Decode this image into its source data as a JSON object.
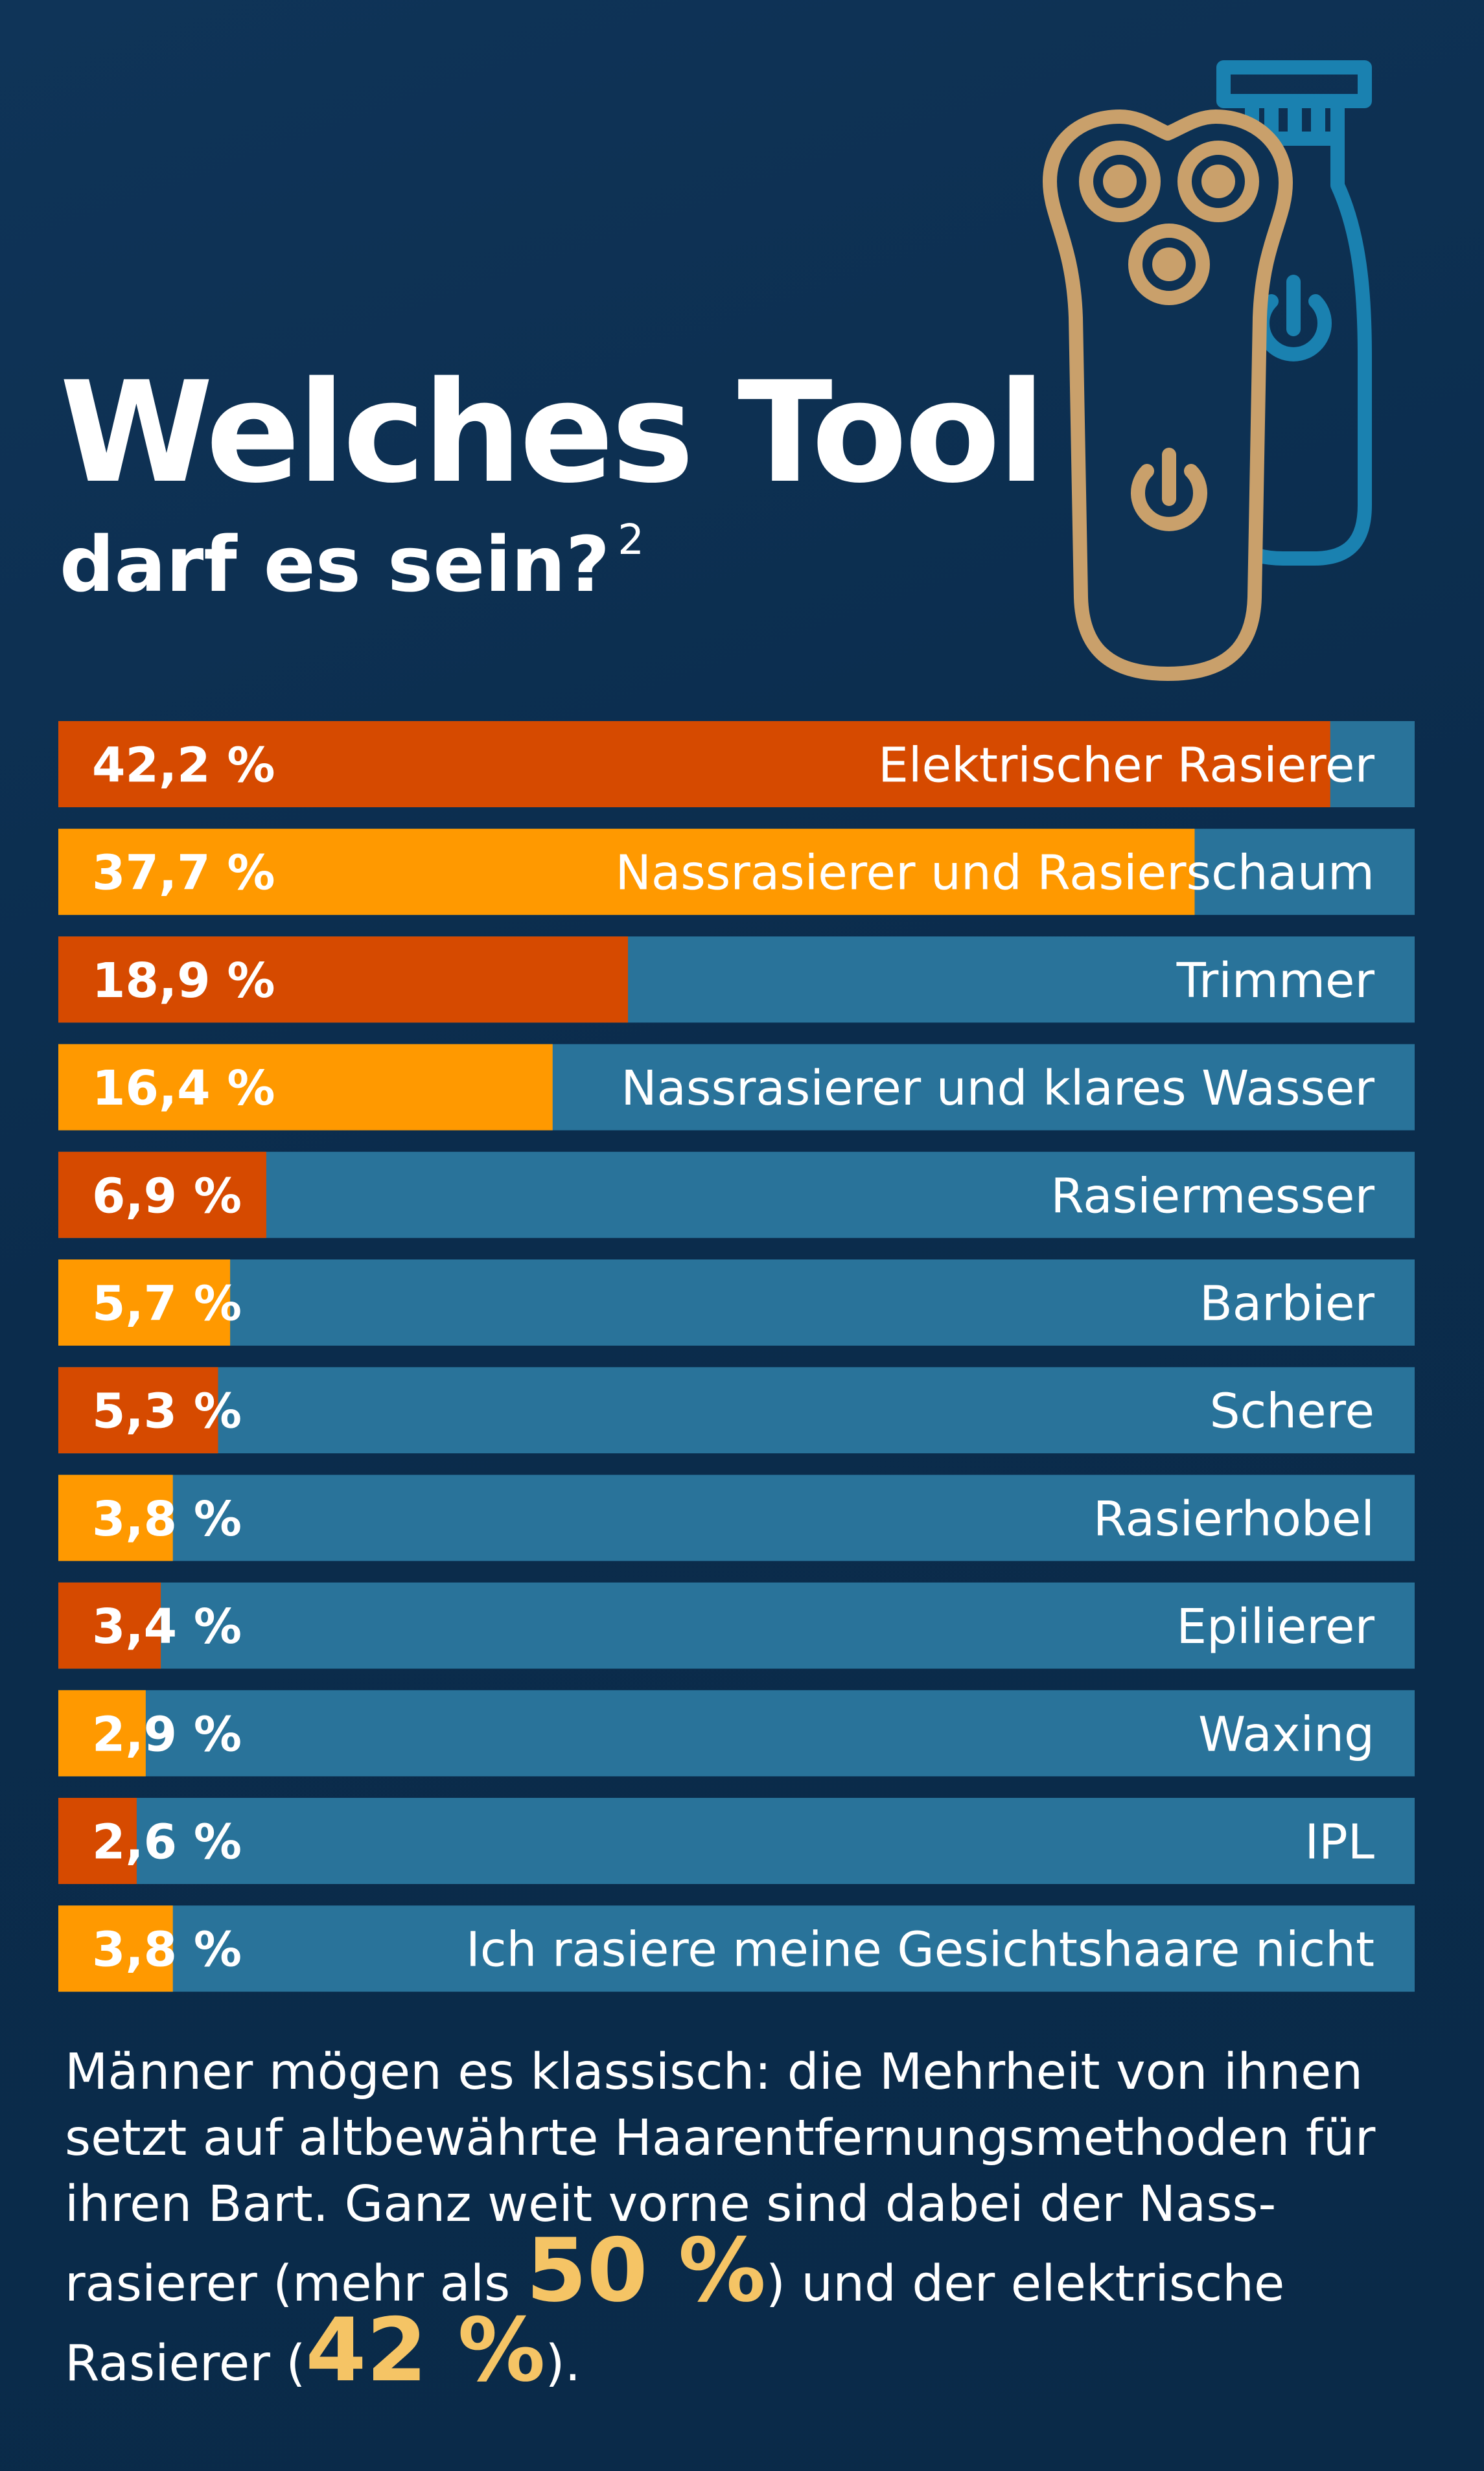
{
  "header": {
    "title": "Welches Tool",
    "subtitle": "darf es sein?",
    "footnote": "2"
  },
  "colors": {
    "background": "#0b2c4c",
    "track": "#29739a",
    "accent_red": "#d64a00",
    "accent_orange": "#ff9900",
    "highlight": "#f5c465",
    "icon_gold": "#c9a06b",
    "icon_blue": "#1a81b0"
  },
  "icons": [
    "electric-shaver-icon",
    "trimmer-icon",
    "power-icon"
  ],
  "chart_data": {
    "type": "bar",
    "orientation": "horizontal",
    "categories": [
      "Elektrischer Rasierer",
      "Nassrasierer und Rasierschaum",
      "Trimmer",
      "Nassrasierer und klares Wasser",
      "Rasiermesser",
      "Barbier",
      "Schere",
      "Rasierhobel",
      "Epilierer",
      "Waxing",
      "IPL",
      "Ich rasiere meine Gesichtshaare nicht"
    ],
    "values": [
      42.2,
      37.7,
      18.9,
      16.4,
      6.9,
      5.7,
      5.3,
      3.8,
      3.4,
      2.9,
      2.6,
      3.8
    ],
    "value_labels": [
      "42,2 %",
      "37,7 %",
      "18,9 %",
      "16,4 %",
      "6,9 %",
      "5,7 %",
      "5,3 %",
      "3,8 %",
      "3,4 %",
      "2,9 %",
      "2,6 %",
      "3,8 %"
    ],
    "xlim": [
      0,
      45
    ],
    "grid": false,
    "legend": "none"
  },
  "summary": {
    "text_1": "Männer mögen es klassisch: die Mehrheit von ihnen setzt auf altbewährte Haarentfernungsmethoden für ihren Bart. Ganz weit vorne sind dabei der Nass-rasierer (mehr als ",
    "highlight_1": "50 %",
    "text_2": ") und der elektrische Rasierer (",
    "highlight_2": "42 %",
    "text_3": ")."
  }
}
